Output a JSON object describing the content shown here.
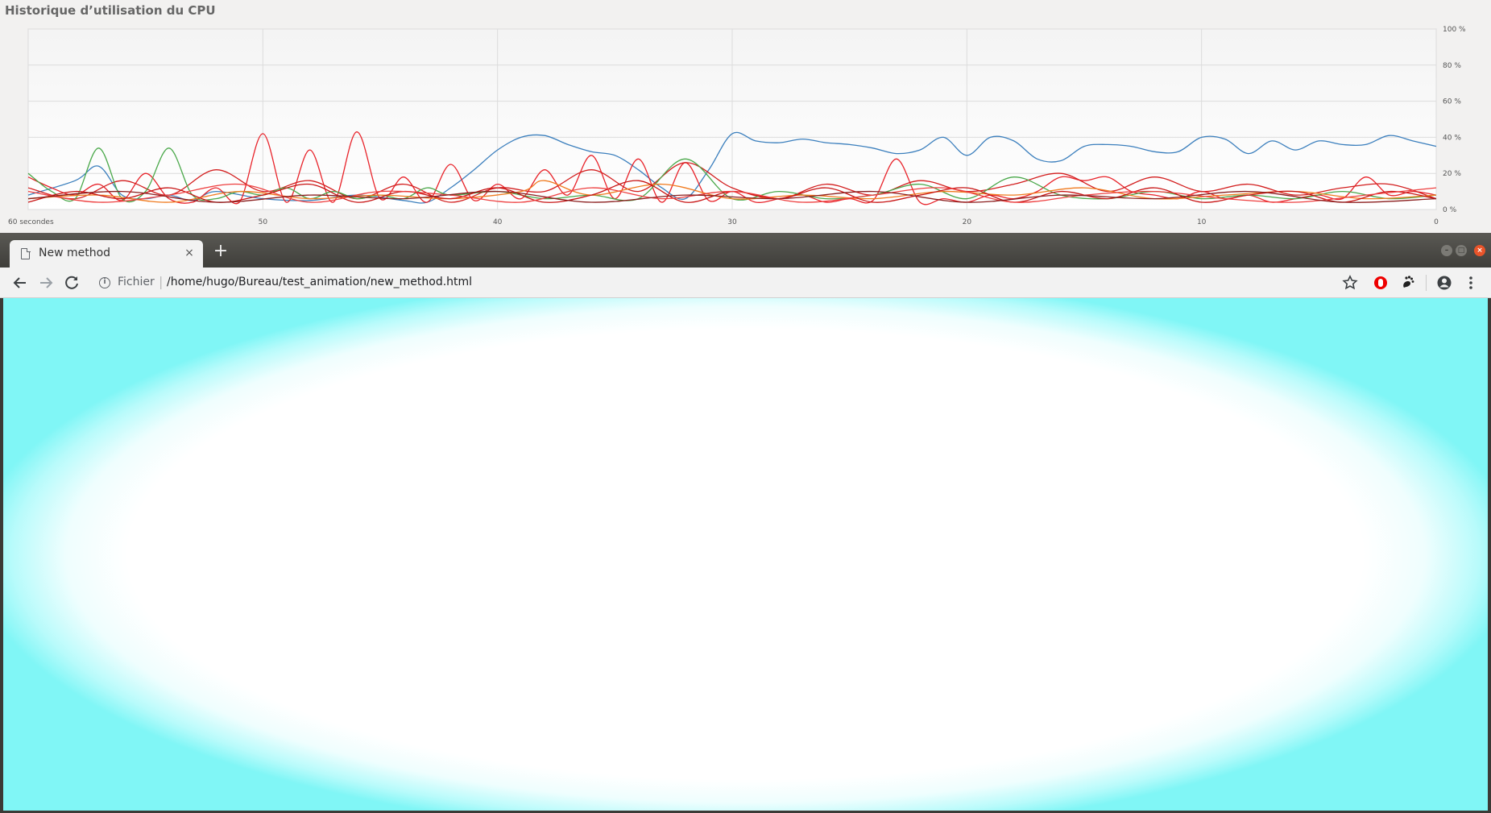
{
  "monitor": {
    "title": "Historique d’utilisation du CPU"
  },
  "chart_data": {
    "type": "line",
    "title": "Historique d’utilisation du CPU",
    "x_unit": "seconds ago",
    "xlim": [
      60,
      0
    ],
    "ylim": [
      0,
      100
    ],
    "x_tick_labels": [
      "60 secondes",
      "50",
      "40",
      "30",
      "20",
      "10",
      "0"
    ],
    "y_tick_labels": [
      "100 %",
      "80 %",
      "60 %",
      "40 %",
      "20 %",
      "0 %"
    ],
    "grid": true,
    "legend": "none",
    "series": [
      {
        "color": "#3b7fbd",
        "x": [
          60,
          58,
          57,
          56,
          55,
          54,
          53,
          52,
          50,
          48,
          46,
          44,
          43,
          42,
          41,
          40,
          39,
          38,
          37,
          36,
          35,
          34,
          33,
          32,
          31,
          30,
          29,
          28,
          27,
          26,
          25,
          24,
          23,
          22,
          21,
          20,
          19,
          18,
          17,
          16,
          15,
          14,
          13,
          12,
          11,
          10,
          9,
          8,
          7,
          6,
          5,
          4,
          3,
          2,
          1,
          0
        ],
        "y": [
          8,
          16,
          24,
          8,
          6,
          8,
          5,
          10,
          6,
          5,
          8,
          5,
          4,
          12,
          22,
          33,
          40,
          41,
          36,
          32,
          30,
          22,
          12,
          6,
          22,
          42,
          38,
          37,
          39,
          37,
          36,
          34,
          31,
          33,
          40,
          30,
          40,
          38,
          28,
          27,
          35,
          36,
          35,
          32,
          32,
          40,
          39,
          31,
          38,
          33,
          38,
          36,
          36,
          41,
          38,
          35
        ]
      },
      {
        "color": "#e8232a",
        "x": [
          60,
          59,
          58,
          57,
          56,
          55,
          54,
          53,
          52,
          51,
          50,
          49,
          48,
          47,
          46,
          45,
          44,
          43,
          42,
          41,
          40,
          39,
          38,
          37,
          36,
          35,
          34,
          33,
          32,
          31,
          30,
          29,
          28,
          27,
          26,
          25,
          24,
          23,
          22,
          21,
          20,
          19,
          18,
          17,
          16,
          15,
          14,
          13,
          12,
          11,
          10,
          9,
          8,
          7,
          6,
          5,
          4,
          3,
          2,
          1,
          0
        ],
        "y": [
          18,
          12,
          8,
          14,
          5,
          20,
          6,
          4,
          12,
          4,
          42,
          4,
          33,
          4,
          43,
          6,
          18,
          4,
          25,
          5,
          14,
          6,
          22,
          8,
          30,
          6,
          28,
          4,
          26,
          5,
          10,
          4,
          6,
          8,
          4,
          6,
          5,
          28,
          4,
          6,
          4,
          8,
          6,
          10,
          18,
          16,
          18,
          10,
          8,
          6,
          10,
          6,
          8,
          4,
          6,
          8,
          6,
          18,
          8,
          10,
          8
        ]
      },
      {
        "color": "#d31f1f",
        "x": [
          60,
          58,
          56,
          54,
          52,
          50,
          48,
          46,
          44,
          42,
          40,
          38,
          36,
          34,
          32,
          30,
          28,
          26,
          24,
          22,
          20,
          18,
          16,
          14,
          12,
          10,
          8,
          6,
          4,
          2,
          0
        ],
        "y": [
          12,
          6,
          16,
          8,
          22,
          10,
          16,
          6,
          14,
          4,
          12,
          10,
          22,
          10,
          26,
          12,
          6,
          14,
          8,
          16,
          10,
          14,
          20,
          10,
          18,
          10,
          14,
          8,
          12,
          14,
          6
        ]
      },
      {
        "color": "#4aa84a",
        "x": [
          60,
          59,
          58,
          57,
          56,
          55,
          54,
          53,
          52,
          51,
          50,
          49,
          48,
          47,
          46,
          45,
          44,
          43,
          42,
          40,
          38,
          36,
          34,
          32,
          30,
          28,
          26,
          24,
          22,
          20,
          18,
          16,
          14,
          12,
          10,
          8,
          6,
          4,
          2,
          0
        ],
        "y": [
          20,
          10,
          6,
          34,
          6,
          10,
          34,
          8,
          6,
          10,
          8,
          12,
          6,
          10,
          6,
          8,
          6,
          12,
          8,
          10,
          6,
          8,
          6,
          28,
          6,
          10,
          6,
          8,
          14,
          6,
          18,
          8,
          6,
          10,
          6,
          8,
          6,
          10,
          6,
          8
        ]
      },
      {
        "color": "#f07b1f",
        "x": [
          60,
          57,
          54,
          51,
          48,
          45,
          42,
          39,
          38,
          36,
          33,
          30,
          27,
          24,
          21,
          18,
          15,
          12,
          9,
          6,
          3,
          0
        ],
        "y": [
          6,
          8,
          4,
          10,
          6,
          8,
          6,
          10,
          16,
          8,
          14,
          6,
          8,
          6,
          10,
          8,
          12,
          6,
          8,
          10,
          6,
          8
        ]
      },
      {
        "color": "#c81414",
        "x": [
          60,
          58,
          56,
          54,
          52,
          50,
          48,
          46,
          44,
          42,
          40,
          38,
          36,
          34,
          32,
          30,
          28,
          26,
          24,
          22,
          20,
          18,
          16,
          14,
          12,
          10,
          8,
          6,
          4,
          2,
          0
        ],
        "y": [
          4,
          10,
          6,
          12,
          4,
          8,
          14,
          4,
          10,
          6,
          12,
          4,
          8,
          16,
          4,
          10,
          6,
          12,
          4,
          8,
          12,
          4,
          10,
          6,
          12,
          4,
          8,
          10,
          4,
          10,
          6
        ]
      },
      {
        "color": "#ee4040",
        "x": [
          60,
          57,
          54,
          51,
          48,
          45,
          42,
          39,
          36,
          33,
          30,
          27,
          24,
          21,
          18,
          15,
          12,
          9,
          6,
          3,
          0
        ],
        "y": [
          10,
          4,
          8,
          14,
          4,
          10,
          8,
          4,
          12,
          6,
          10,
          4,
          8,
          12,
          4,
          8,
          10,
          6,
          4,
          8,
          12
        ]
      },
      {
        "color": "#8b1e1e",
        "x": [
          60,
          56,
          52,
          48,
          44,
          40,
          36,
          32,
          28,
          24,
          20,
          16,
          12,
          8,
          4,
          0
        ],
        "y": [
          6,
          10,
          4,
          8,
          6,
          10,
          4,
          8,
          6,
          10,
          4,
          8,
          6,
          10,
          4,
          6
        ]
      }
    ]
  },
  "browser": {
    "tab_title": "New method",
    "tab_close": "×",
    "new_tab": "+",
    "scheme_label": "Fichier",
    "url": "/home/hugo/Bureau/test_animation/new_method.html"
  }
}
